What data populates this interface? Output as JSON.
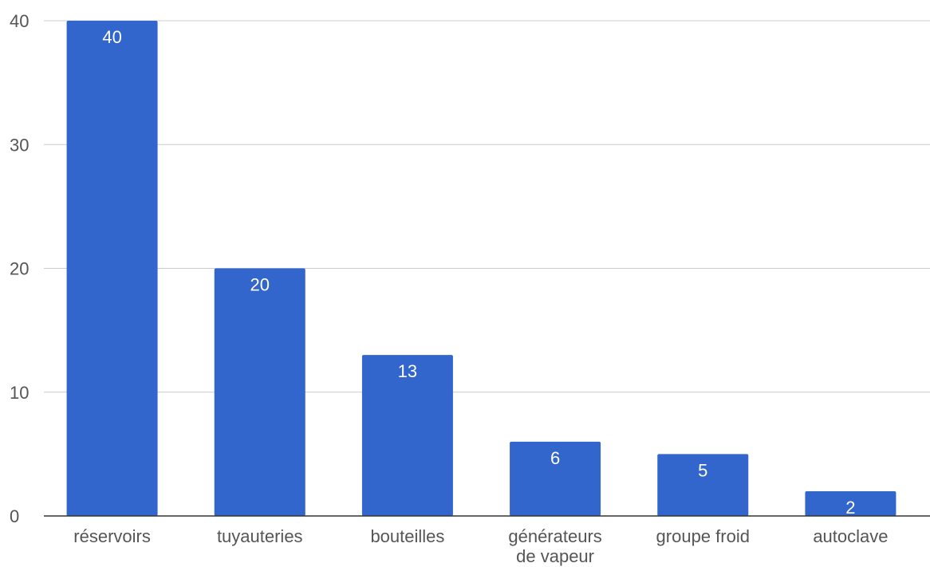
{
  "chart_data": {
    "type": "bar",
    "categories": [
      "réservoirs",
      "tuyauteries",
      "bouteilles",
      "générateurs de vapeur",
      "groupe froid",
      "autoclave"
    ],
    "category_lines": [
      [
        "réservoirs"
      ],
      [
        "tuyauteries"
      ],
      [
        "bouteilles"
      ],
      [
        "générateurs",
        "de vapeur"
      ],
      [
        "groupe froid"
      ],
      [
        "autoclave"
      ]
    ],
    "values": [
      40,
      20,
      13,
      6,
      5,
      2
    ],
    "data_labels": [
      "40",
      "20",
      "13",
      "6",
      "5",
      "2"
    ],
    "yticks": [
      0,
      10,
      20,
      30,
      40
    ],
    "ylim": [
      0,
      40
    ],
    "grid": true,
    "bar_color": "#3366cc",
    "title": "",
    "xlabel": "",
    "ylabel": ""
  }
}
